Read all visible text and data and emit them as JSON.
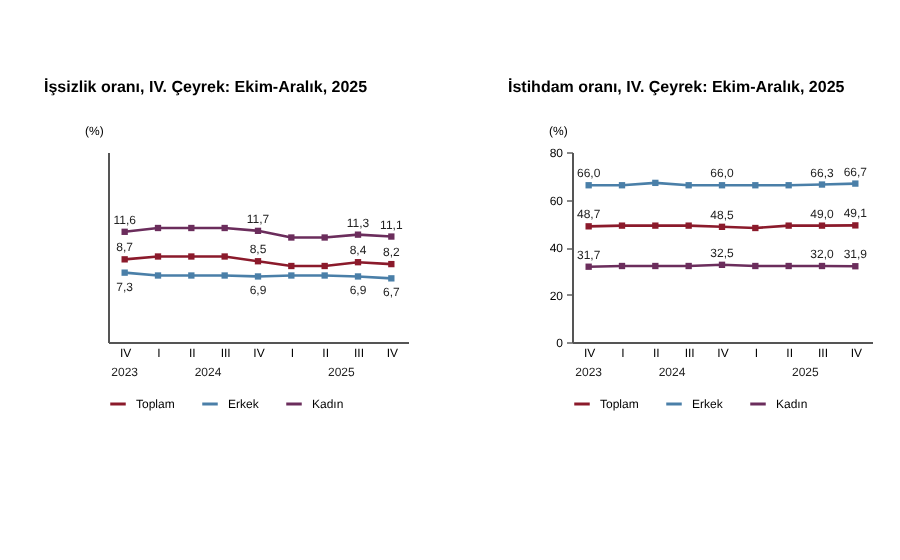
{
  "chart_data": [
    {
      "type": "line",
      "title": "İşsizlik oranı, IV. Çeyrek: Ekim-Aralık, 2025",
      "ylabel": "(%)",
      "categories": [
        "IV",
        "I",
        "II",
        "III",
        "IV",
        "I",
        "II",
        "III",
        "IV"
      ],
      "annotations": [
        "2023",
        "2024",
        "2025"
      ],
      "ylim": [
        0,
        20
      ],
      "legend": "bottom",
      "marker": "square",
      "series": [
        {
          "name": "Toplam",
          "color": "#8b1a2b",
          "values": [
            8.7,
            9,
            9,
            9,
            8.5,
            8,
            8,
            8.4,
            8.2
          ],
          "value_labels": [
            "8,7",
            null,
            null,
            null,
            "8,5",
            null,
            null,
            "8,4",
            "8,2"
          ]
        },
        {
          "name": "Erkek",
          "color": "#4a7fa8",
          "values": [
            7.3,
            7,
            7,
            7,
            6.9,
            7,
            7,
            6.9,
            6.7
          ],
          "value_labels": [
            "7,3",
            null,
            null,
            null,
            "6,9",
            null,
            null,
            "6,9",
            "6,7"
          ]
        },
        {
          "name": "Kadın",
          "color": "#6b2d5c",
          "values": [
            11.6,
            12,
            12,
            12,
            11.7,
            11,
            11,
            11.3,
            11.1
          ],
          "value_labels": [
            "11,6",
            null,
            null,
            null,
            "11,7",
            null,
            null,
            "11,3",
            "11,1"
          ]
        }
      ]
    },
    {
      "type": "line",
      "title": "İstihdam oranı, IV. Çeyrek: Ekim-Aralık, 2025",
      "ylabel": "(%)",
      "categories": [
        "IV",
        "I",
        "II",
        "III",
        "IV",
        "I",
        "II",
        "III",
        "IV"
      ],
      "annotations": [
        "2023",
        "2024",
        "2025"
      ],
      "ylim": [
        0,
        80
      ],
      "yticks": [
        0,
        20,
        40,
        60,
        80
      ],
      "legend": "bottom",
      "marker": "square",
      "series": [
        {
          "name": "Toplam",
          "color": "#8b1a2b",
          "values": [
            48.7,
            49,
            49,
            49,
            48.5,
            48,
            49,
            49.0,
            49.1
          ],
          "value_labels": [
            "48,7",
            null,
            null,
            null,
            "48,5",
            null,
            null,
            "49,0",
            "49,1"
          ]
        },
        {
          "name": "Erkek",
          "color": "#4a7fa8",
          "values": [
            66.0,
            66,
            67,
            66,
            66.0,
            66,
            66,
            66.3,
            66.7
          ],
          "value_labels": [
            "66,0",
            null,
            null,
            null,
            "66,0",
            null,
            null,
            "66,3",
            "66,7"
          ]
        },
        {
          "name": "Kadın",
          "color": "#6b2d5c",
          "values": [
            31.7,
            32,
            32,
            32,
            32.5,
            32,
            32,
            32.0,
            31.9
          ],
          "value_labels": [
            "31,7",
            null,
            null,
            null,
            "32,5",
            null,
            null,
            "32,0",
            "31,9"
          ]
        }
      ]
    }
  ]
}
